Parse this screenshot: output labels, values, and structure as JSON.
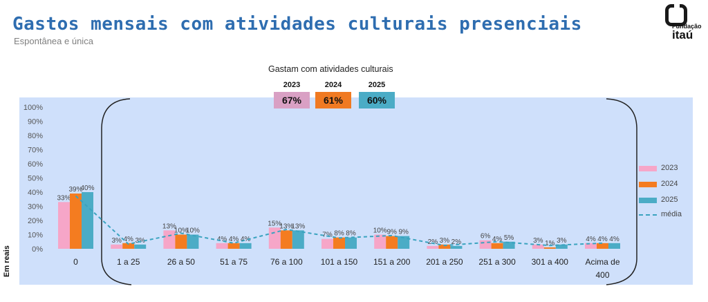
{
  "header": {
    "title": "Gastos mensais com atividades culturais presenciais",
    "subtitle": "Espontânea e única"
  },
  "logo": {
    "line1": "Fundação",
    "line2": "itaú"
  },
  "summary": {
    "title": "Gastam com atividades culturais",
    "items": [
      {
        "year": "2023",
        "value": "67%",
        "color": "#d9a0c4"
      },
      {
        "year": "2024",
        "value": "61%",
        "color": "#f07a22"
      },
      {
        "year": "2025",
        "value": "60%",
        "color": "#4bacc6"
      }
    ]
  },
  "colors": {
    "s2023": "#f6a6c8",
    "s2024": "#f47c20",
    "s2025": "#4bacc6",
    "mean": "#3aa3bf",
    "background": "#cfe0fb"
  },
  "chart_data": {
    "type": "bar",
    "title": "",
    "xlabel": "",
    "ylabel": "Em reais",
    "ylim": [
      0,
      100
    ],
    "yticks": [
      "0%",
      "10%",
      "20%",
      "30%",
      "40%",
      "50%",
      "60%",
      "70%",
      "80%",
      "90%",
      "100%"
    ],
    "categories": [
      "0",
      "1 a 25",
      "26 a 50",
      "51 a 75",
      "76 a 100",
      "101 a 150",
      "151 a 200",
      "201 a 250",
      "251 a 300",
      "301 a 400",
      "Acima de 400"
    ],
    "series": [
      {
        "name": "2023",
        "values": [
          33,
          3,
          13,
          4,
          15,
          7,
          10,
          2,
          6,
          3,
          4
        ]
      },
      {
        "name": "2024",
        "values": [
          39,
          4,
          10,
          4,
          13,
          8,
          9,
          3,
          4,
          1,
          4
        ]
      },
      {
        "name": "2025",
        "values": [
          40,
          3,
          10,
          4,
          13,
          8,
          9,
          2,
          5,
          3,
          4
        ]
      }
    ],
    "mean_line": {
      "name": "média"
    },
    "legend_position": "right"
  }
}
